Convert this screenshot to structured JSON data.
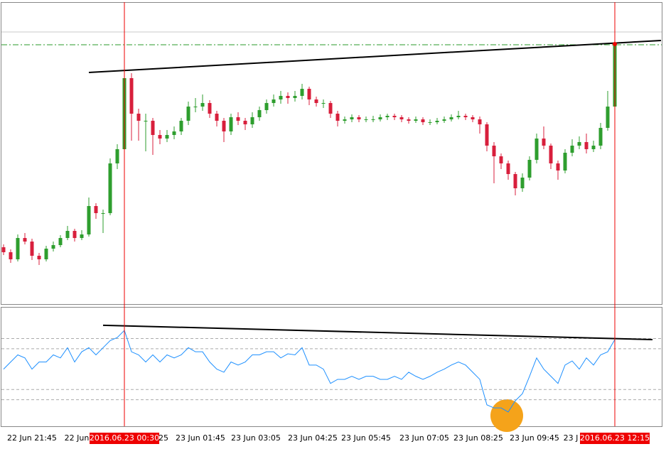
{
  "chart_data": [
    {
      "type": "candlestick",
      "ylim": [
        0,
        425
      ],
      "up_color": "#2e9e2e",
      "down_color": "#d81f3c",
      "trendline": [
        326,
        371
      ],
      "level": 365,
      "ask": 383,
      "values": [
        [
          80,
          84,
          69,
          73
        ],
        [
          73,
          77,
          58,
          63
        ],
        [
          63,
          98,
          60,
          93
        ],
        [
          93,
          100,
          84,
          88
        ],
        [
          88,
          92,
          62,
          68
        ],
        [
          68,
          72,
          55,
          63
        ],
        [
          63,
          82,
          60,
          78
        ],
        [
          78,
          88,
          74,
          83
        ],
        [
          83,
          97,
          80,
          93
        ],
        [
          93,
          110,
          90,
          103
        ],
        [
          103,
          106,
          88,
          93
        ],
        [
          93,
          104,
          90,
          98
        ],
        [
          98,
          150,
          95,
          138
        ],
        [
          138,
          142,
          120,
          128
        ],
        [
          128,
          133,
          100,
          128
        ],
        [
          128,
          205,
          125,
          198
        ],
        [
          198,
          225,
          190,
          218
        ],
        [
          218,
          328,
          212,
          318
        ],
        [
          318,
          325,
          230,
          268
        ],
        [
          268,
          275,
          230,
          258
        ],
        [
          258,
          268,
          215,
          258
        ],
        [
          258,
          262,
          210,
          238
        ],
        [
          238,
          245,
          225,
          233
        ],
        [
          233,
          245,
          228,
          238
        ],
        [
          238,
          250,
          232,
          243
        ],
        [
          243,
          262,
          238,
          258
        ],
        [
          258,
          285,
          252,
          278
        ],
        [
          278,
          290,
          270,
          278
        ],
        [
          278,
          295,
          272,
          283
        ],
        [
          283,
          287,
          262,
          268
        ],
        [
          268,
          272,
          250,
          258
        ],
        [
          258,
          262,
          228,
          243
        ],
        [
          243,
          268,
          238,
          263
        ],
        [
          263,
          270,
          252,
          258
        ],
        [
          258,
          262,
          245,
          253
        ],
        [
          253,
          270,
          248,
          263
        ],
        [
          263,
          278,
          258,
          273
        ],
        [
          273,
          288,
          268,
          283
        ],
        [
          283,
          295,
          278,
          288
        ],
        [
          288,
          300,
          282,
          293
        ],
        [
          293,
          298,
          282,
          290
        ],
        [
          290,
          300,
          285,
          293
        ],
        [
          293,
          310,
          288,
          303
        ],
        [
          303,
          306,
          280,
          288
        ],
        [
          288,
          292,
          278,
          283
        ],
        [
          283,
          288,
          276,
          283
        ],
        [
          283,
          286,
          262,
          268
        ],
        [
          268,
          272,
          250,
          258
        ],
        [
          258,
          264,
          254,
          260
        ],
        [
          260,
          267,
          256,
          263
        ],
        [
          263,
          266,
          256,
          260
        ],
        [
          260,
          264,
          256,
          260
        ],
        [
          260,
          265,
          256,
          260
        ],
        [
          260,
          267,
          257,
          263
        ],
        [
          263,
          268,
          259,
          265
        ],
        [
          265,
          268,
          259,
          263
        ],
        [
          263,
          266,
          256,
          260
        ],
        [
          260,
          263,
          254,
          258
        ],
        [
          258,
          264,
          255,
          260
        ],
        [
          260,
          263,
          252,
          256
        ],
        [
          256,
          260,
          252,
          256
        ],
        [
          256,
          262,
          253,
          258
        ],
        [
          258,
          264,
          255,
          260
        ],
        [
          260,
          267,
          257,
          263
        ],
        [
          263,
          272,
          260,
          265
        ],
        [
          265,
          268,
          259,
          263
        ],
        [
          263,
          266,
          256,
          260
        ],
        [
          260,
          264,
          240,
          253
        ],
        [
          253,
          256,
          215,
          223
        ],
        [
          223,
          228,
          170,
          208
        ],
        [
          208,
          212,
          190,
          198
        ],
        [
          198,
          202,
          175,
          183
        ],
        [
          183,
          186,
          153,
          163
        ],
        [
          163,
          184,
          158,
          178
        ],
        [
          178,
          208,
          174,
          203
        ],
        [
          203,
          240,
          198,
          233
        ],
        [
          233,
          250,
          218,
          223
        ],
        [
          223,
          226,
          190,
          198
        ],
        [
          198,
          202,
          175,
          188
        ],
        [
          188,
          218,
          184,
          213
        ],
        [
          213,
          232,
          208,
          223
        ],
        [
          223,
          236,
          218,
          228
        ],
        [
          228,
          240,
          212,
          218
        ],
        [
          218,
          230,
          214,
          223
        ],
        [
          223,
          255,
          218,
          248
        ],
        [
          248,
          300,
          244,
          278
        ],
        [
          278,
          400,
          274,
          366
        ]
      ]
    },
    {
      "type": "line",
      "ylim": [
        -6,
        111
      ],
      "color": "#1e90ff",
      "levels": [
        80,
        70,
        30,
        20
      ],
      "trendline": [
        93,
        79
      ],
      "values": [
        50,
        57,
        64,
        61,
        50,
        57,
        57,
        64,
        61,
        71,
        57,
        67,
        71,
        64,
        71,
        78,
        81,
        88,
        67,
        64,
        57,
        64,
        57,
        64,
        61,
        64,
        71,
        67,
        67,
        57,
        50,
        47,
        57,
        54,
        57,
        64,
        64,
        67,
        67,
        61,
        65,
        64,
        71,
        54,
        54,
        50,
        36,
        40,
        40,
        43,
        40,
        43,
        43,
        40,
        40,
        43,
        40,
        47,
        43,
        40,
        43,
        47,
        50,
        54,
        57,
        54,
        47,
        40,
        15,
        12,
        12,
        8,
        19,
        26,
        43,
        61,
        50,
        43,
        36,
        54,
        58,
        50,
        61,
        54,
        64,
        67,
        79
      ]
    }
  ],
  "x_axis": {
    "labels": [
      "22 Jun 21:45",
      "22 Jun",
      "25",
      "23 Jun 01:45",
      "23 Jun 03:05",
      "23 Jun 04:25",
      "23 Jun 05:45",
      "23 Jun 07:05",
      "23 Jun 08:25",
      "23 Jun 09:45",
      "23 J"
    ],
    "highlights": [
      "2016.06.23 00:30",
      "2016.06.23 12:15"
    ]
  }
}
